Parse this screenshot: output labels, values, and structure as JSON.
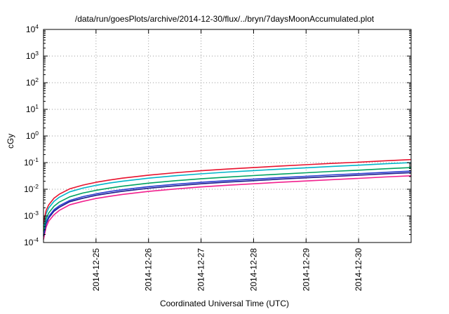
{
  "chart": {
    "title": "/data/run/goesPlots/archive/2014-12-30/flux/../bryn/7daysMoonAccumulated.plot",
    "ylabel": "cGy",
    "xlabel": "Coordinated Universal Time (UTC)"
  },
  "chart_data": {
    "type": "line",
    "title": "/data/run/goesPlots/archive/2014-12-30/flux/../bryn/7daysMoonAccumulated.plot",
    "xlabel": "Coordinated Universal Time (UTC)",
    "ylabel": "cGy",
    "y_scale": "log",
    "ylim": [
      0.0001,
      10000
    ],
    "y_tick_exponents": [
      -4,
      -3,
      -2,
      -1,
      0,
      1,
      2,
      3,
      4
    ],
    "x_days_range": [
      0,
      7
    ],
    "x_tick_days": [
      1,
      2,
      3,
      4,
      5,
      6
    ],
    "x_tick_labels": [
      "2014-12-25",
      "2014-12-26",
      "2014-12-27",
      "2014-12-28",
      "2014-12-29",
      "2014-12-30"
    ],
    "grid": "dotted",
    "legend_position": "none",
    "x": [
      0,
      0.05,
      0.1,
      0.2,
      0.3,
      0.5,
      0.75,
      1,
      1.25,
      1.5,
      2,
      2.5,
      3,
      3.5,
      4,
      4.5,
      5,
      5.5,
      6,
      6.5,
      7
    ],
    "series": [
      {
        "name": "magenta-curve",
        "color": "#f2208e",
        "values": [
          0.00013,
          0.00038,
          0.00064,
          0.0011,
          0.0016,
          0.0026,
          0.0035,
          0.0045,
          0.0054,
          0.0064,
          0.0083,
          0.0102,
          0.0122,
          0.0141,
          0.016,
          0.0182,
          0.0205,
          0.023,
          0.0256,
          0.0288,
          0.032
        ]
      },
      {
        "name": "navy-curve",
        "color": "#1a1a8c",
        "values": [
          0.00017,
          0.0005,
          0.00084,
          0.0015,
          0.0021,
          0.0034,
          0.0046,
          0.0059,
          0.0071,
          0.0084,
          0.0109,
          0.0134,
          0.016,
          0.0185,
          0.021,
          0.0239,
          0.0269,
          0.0302,
          0.0336,
          0.0378,
          0.042
        ]
      },
      {
        "name": "blue-curve",
        "color": "#2a3bd0",
        "values": [
          0.00019,
          0.00058,
          0.00096,
          0.0017,
          0.0024,
          0.0038,
          0.0053,
          0.0067,
          0.0082,
          0.0096,
          0.0125,
          0.0154,
          0.0182,
          0.0211,
          0.024,
          0.0274,
          0.0307,
          0.0346,
          0.0384,
          0.0432,
          0.048
        ]
      },
      {
        "name": "green-curve",
        "color": "#00a261",
        "values": [
          0.00026,
          0.00078,
          0.0013,
          0.0023,
          0.0033,
          0.0052,
          0.0072,
          0.0091,
          0.011,
          0.013,
          0.0169,
          0.0208,
          0.0247,
          0.0286,
          0.0325,
          0.037,
          0.0416,
          0.0468,
          0.052,
          0.0585,
          0.065
        ]
      },
      {
        "name": "cyan-curve",
        "color": "#00b5c9",
        "values": [
          0.0004,
          0.0012,
          0.002,
          0.0035,
          0.005,
          0.008,
          0.011,
          0.014,
          0.017,
          0.02,
          0.026,
          0.032,
          0.038,
          0.044,
          0.05,
          0.057,
          0.064,
          0.072,
          0.08,
          0.09,
          0.1
        ]
      },
      {
        "name": "red-curve",
        "color": "#e8112d",
        "values": [
          0.00052,
          0.0016,
          0.0026,
          0.0046,
          0.0065,
          0.0104,
          0.0143,
          0.0182,
          0.0221,
          0.026,
          0.0338,
          0.0416,
          0.0494,
          0.0572,
          0.065,
          0.0741,
          0.0832,
          0.0936,
          0.104,
          0.117,
          0.13
        ]
      }
    ],
    "style": {
      "grid_color": "#9a9a9a",
      "axis_color": "#000000",
      "background": "#ffffff"
    }
  }
}
